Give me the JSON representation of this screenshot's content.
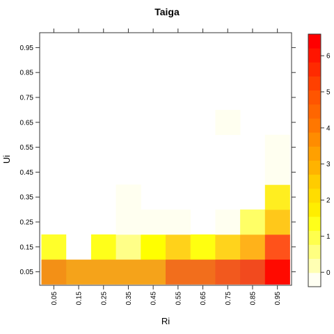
{
  "chart_data": {
    "type": "heatmap",
    "title": "Taiga",
    "xlabel": "Ri",
    "ylabel": "Ui",
    "x_ticks": [
      "0.05",
      "0.15",
      "0.25",
      "0.35",
      "0.45",
      "0.55",
      "0.65",
      "0.75",
      "0.85",
      "0.95"
    ],
    "y_ticks": [
      "0.05",
      "0.15",
      "0.25",
      "0.35",
      "0.45",
      "0.55",
      "0.65",
      "0.75",
      "0.85",
      "0.95"
    ],
    "x_range": [
      0,
      1
    ],
    "y_range": [
      0,
      1
    ],
    "colorbar": {
      "ticks": [
        "0",
        "1",
        "2",
        "3",
        "4",
        "5",
        "6"
      ],
      "range": [
        -0.4,
        6.6
      ],
      "levels": [
        "#fffff2",
        "#ffffb3",
        "#ffff80",
        "#ffff4d",
        "#ffff1a",
        "#ffee00",
        "#ffdd00",
        "#ffcc00",
        "#ffb300",
        "#ffa000",
        "#ff8c00",
        "#ff7700",
        "#ff6600",
        "#ff5500",
        "#ff4000",
        "#ff2a00",
        "#ff1500",
        "#ff0000"
      ]
    },
    "cells": [
      {
        "x": 0.05,
        "y": 0.05,
        "value": 3.6,
        "color": "#f39016"
      },
      {
        "x": 0.15,
        "y": 0.05,
        "value": 3.3,
        "color": "#f5a31a"
      },
      {
        "x": 0.25,
        "y": 0.05,
        "value": 3.3,
        "color": "#f5a31a"
      },
      {
        "x": 0.35,
        "y": 0.05,
        "value": 3.3,
        "color": "#f5a31a"
      },
      {
        "x": 0.45,
        "y": 0.05,
        "value": 3.3,
        "color": "#f5a31a"
      },
      {
        "x": 0.55,
        "y": 0.05,
        "value": 4.3,
        "color": "#f26e1c"
      },
      {
        "x": 0.65,
        "y": 0.05,
        "value": 4.3,
        "color": "#f26e1c"
      },
      {
        "x": 0.75,
        "y": 0.05,
        "value": 4.8,
        "color": "#f2591e"
      },
      {
        "x": 0.85,
        "y": 0.05,
        "value": 5.2,
        "color": "#f24a1e"
      },
      {
        "x": 0.95,
        "y": 0.05,
        "value": 6.4,
        "color": "#ff0a00"
      },
      {
        "x": 0.05,
        "y": 0.15,
        "value": 1.3,
        "color": "#ffff2a"
      },
      {
        "x": 0.15,
        "y": 0.15,
        "value": 0.0,
        "color": "#ffffff"
      },
      {
        "x": 0.25,
        "y": 0.15,
        "value": 1.3,
        "color": "#ffff1a"
      },
      {
        "x": 0.35,
        "y": 0.15,
        "value": 0.8,
        "color": "#ffff88"
      },
      {
        "x": 0.45,
        "y": 0.15,
        "value": 1.4,
        "color": "#ffff00"
      },
      {
        "x": 0.55,
        "y": 0.15,
        "value": 2.5,
        "color": "#ffd21a"
      },
      {
        "x": 0.65,
        "y": 0.15,
        "value": 1.4,
        "color": "#ffff10"
      },
      {
        "x": 0.75,
        "y": 0.15,
        "value": 2.4,
        "color": "#ffd31c"
      },
      {
        "x": 0.85,
        "y": 0.15,
        "value": 3.1,
        "color": "#ffb21a"
      },
      {
        "x": 0.95,
        "y": 0.15,
        "value": 4.9,
        "color": "#ff521a"
      },
      {
        "x": 0.35,
        "y": 0.25,
        "value": 0.1,
        "color": "#fffff0"
      },
      {
        "x": 0.45,
        "y": 0.25,
        "value": 0.1,
        "color": "#fffff0"
      },
      {
        "x": 0.55,
        "y": 0.25,
        "value": 0.1,
        "color": "#fffff0"
      },
      {
        "x": 0.75,
        "y": 0.25,
        "value": 0.1,
        "color": "#fffff0"
      },
      {
        "x": 0.85,
        "y": 0.25,
        "value": 1.1,
        "color": "#ffff66"
      },
      {
        "x": 0.95,
        "y": 0.25,
        "value": 2.8,
        "color": "#ffc81a"
      },
      {
        "x": 0.35,
        "y": 0.35,
        "value": 0.1,
        "color": "#fffff0"
      },
      {
        "x": 0.95,
        "y": 0.35,
        "value": 1.8,
        "color": "#ffee20"
      },
      {
        "x": 0.95,
        "y": 0.45,
        "value": 0.1,
        "color": "#fffff0"
      },
      {
        "x": 0.95,
        "y": 0.55,
        "value": 0.1,
        "color": "#fffff0"
      },
      {
        "x": 0.75,
        "y": 0.65,
        "value": 0.1,
        "color": "#fffff0"
      }
    ]
  }
}
